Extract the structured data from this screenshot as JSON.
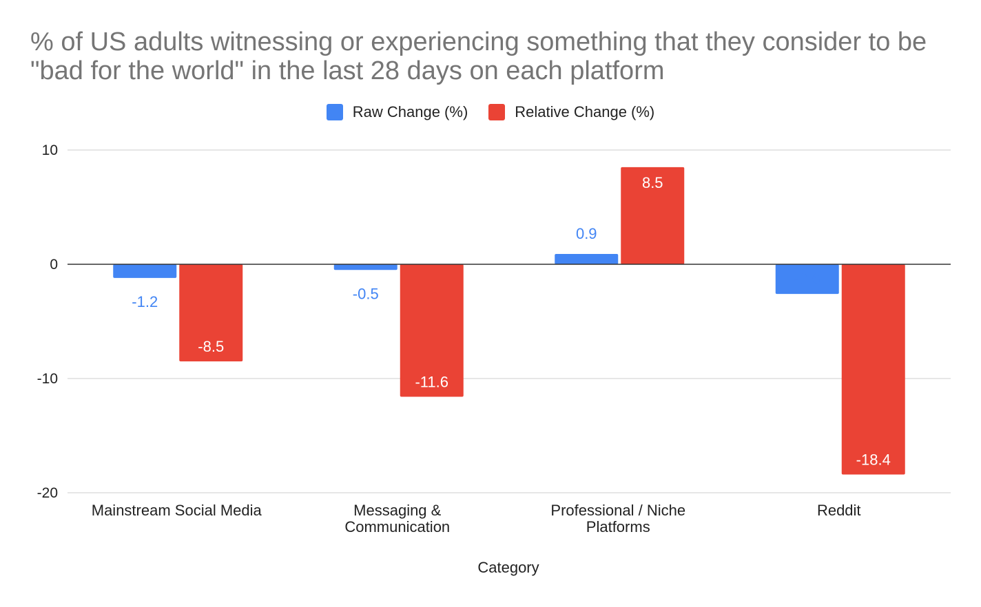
{
  "chart_data": {
    "type": "bar",
    "title": "% of US adults witnessing or experiencing something that they consider to be \"bad for the world\" in the last 28 days on each platform",
    "xlabel": "Category",
    "ylabel": "",
    "categories": [
      [
        "Mainstream Social Media"
      ],
      [
        "Messaging &",
        "Communication"
      ],
      [
        "Professional / Niche",
        "Platforms"
      ],
      [
        "Reddit"
      ]
    ],
    "series": [
      {
        "name": "Raw Change (%)",
        "color": "#4285F4",
        "label_color": "#4285F4",
        "values": [
          -1.2,
          -0.5,
          0.9,
          -2.6
        ]
      },
      {
        "name": "Relative Change (%)",
        "color": "#EA4335",
        "label_color": "#FFFFFF",
        "values": [
          -8.5,
          -11.6,
          8.5,
          -18.4
        ]
      }
    ],
    "ylim": [
      -20,
      10
    ],
    "yticks": [
      10,
      0,
      -10,
      -20
    ],
    "grid": true,
    "legend_position": "top-center"
  }
}
